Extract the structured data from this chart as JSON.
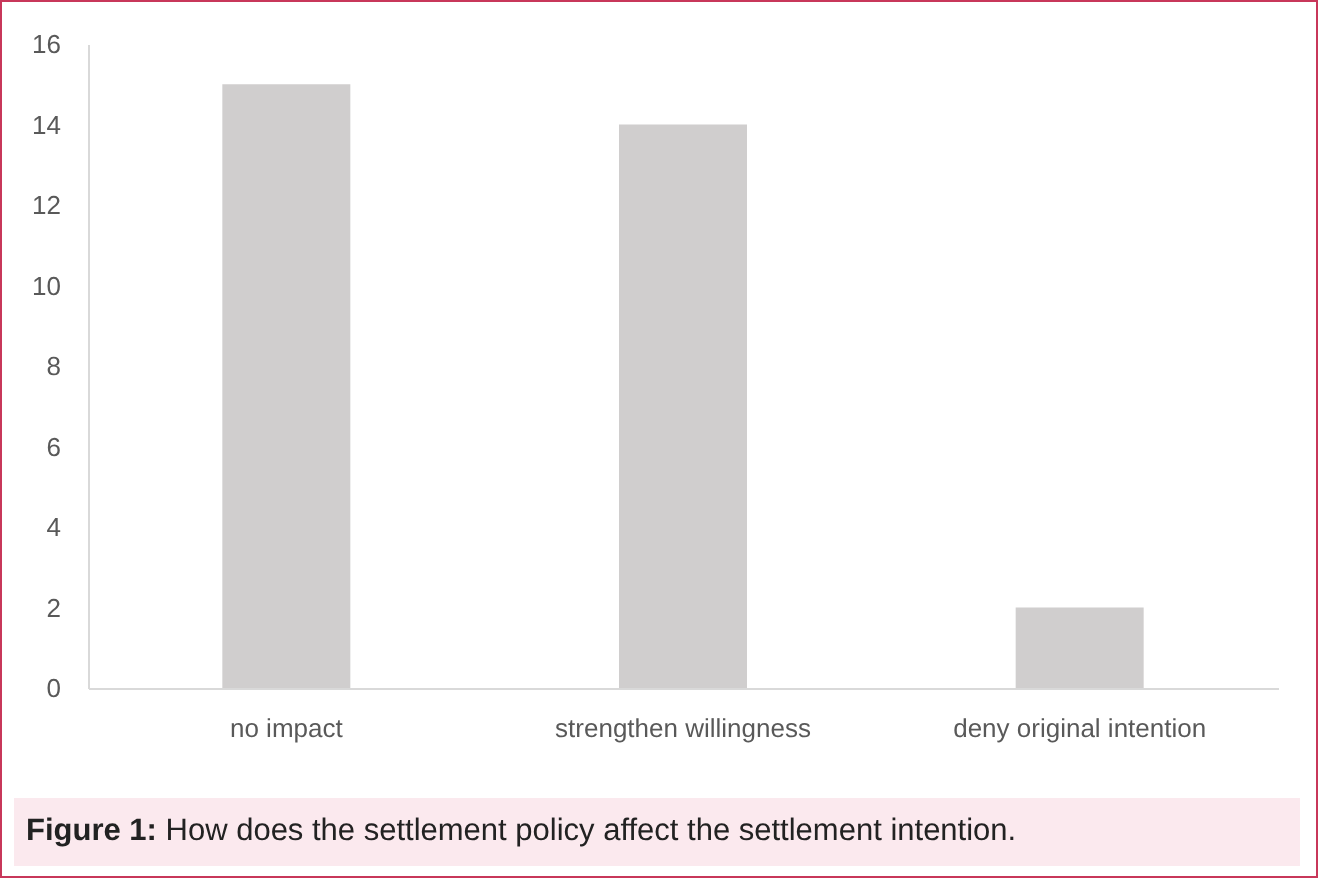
{
  "chart_data": {
    "type": "bar",
    "categories": [
      "no impact",
      "strengthen willingness",
      "deny original intention"
    ],
    "values": [
      15,
      14,
      2
    ],
    "color": "#d0cece",
    "ylim": [
      0,
      16
    ],
    "yticks": [
      0,
      2,
      4,
      6,
      8,
      10,
      12,
      14,
      16
    ],
    "grid": false,
    "annotations": [
      "Figure 1: How does the settlement policy affect the settlement intention."
    ]
  }
}
